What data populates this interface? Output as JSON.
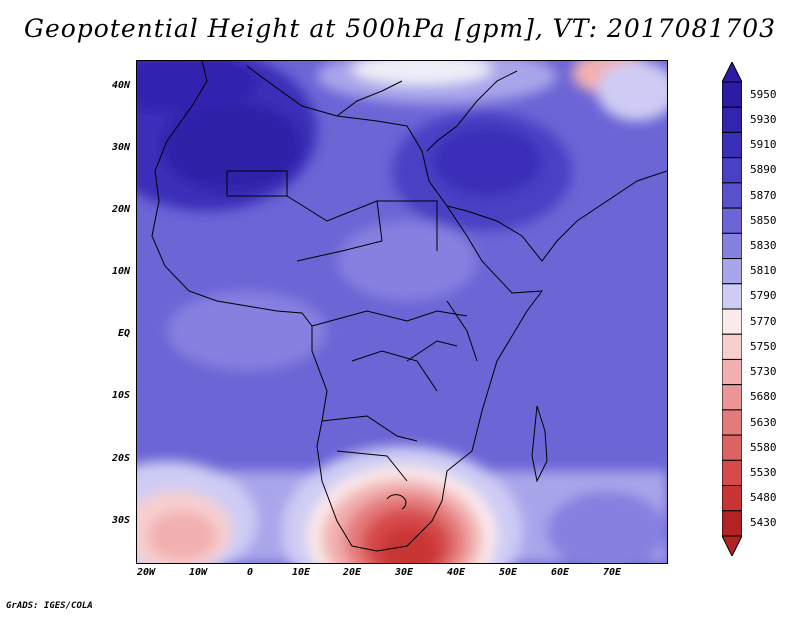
{
  "title": "Geopotential Height at 500hPa [gpm], VT: 2017081703",
  "credit": "GrADS: IGES/COLA",
  "lat_labels": [
    "40N",
    "30N",
    "20N",
    "10N",
    "EQ",
    "10S",
    "20S",
    "30S"
  ],
  "lon_labels": [
    "20W",
    "10W",
    "0",
    "10E",
    "20E",
    "30E",
    "40E",
    "50E",
    "60E",
    "70E"
  ],
  "colorbar": {
    "levels": [
      {
        "value": "5950",
        "color": "#2b1ca3"
      },
      {
        "value": "5930",
        "color": "#3324b0"
      },
      {
        "value": "5910",
        "color": "#3a2fb8"
      },
      {
        "value": "5890",
        "color": "#4a40c4"
      },
      {
        "value": "5870",
        "color": "#5a52cd"
      },
      {
        "value": "5850",
        "color": "#6b65d6"
      },
      {
        "value": "5830",
        "color": "#8680e0"
      },
      {
        "value": "5810",
        "color": "#a9a5ea"
      },
      {
        "value": "5790",
        "color": "#ceccf4"
      },
      {
        "value": "5770",
        "color": "#fbeaea"
      },
      {
        "value": "5750",
        "color": "#f7cfcf"
      },
      {
        "value": "5730",
        "color": "#f2b0b0"
      },
      {
        "value": "5680",
        "color": "#ec9595"
      },
      {
        "value": "5630",
        "color": "#e47b7b"
      },
      {
        "value": "5580",
        "color": "#dd6262"
      },
      {
        "value": "5530",
        "color": "#d64a4a"
      },
      {
        "value": "5480",
        "color": "#c93535"
      },
      {
        "value": "5430",
        "color": "#b42222"
      }
    ]
  }
}
